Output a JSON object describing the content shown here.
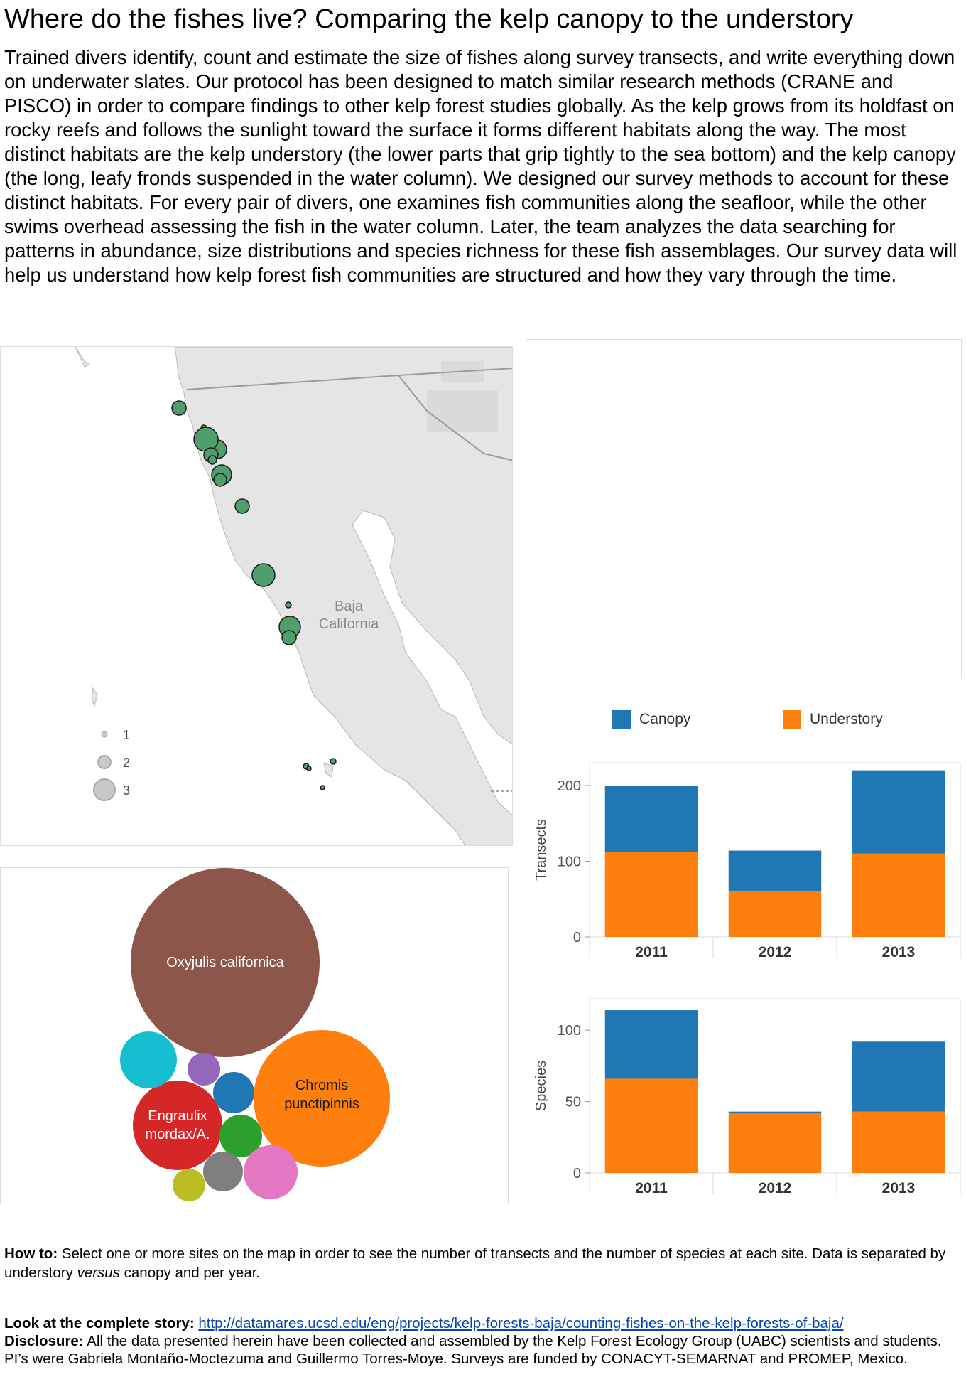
{
  "page": {
    "title": "Where do the fishes live? Comparing the kelp canopy to the understory",
    "intro": "Trained divers identify, count and estimate the size of fishes along survey transects, and write everything down on underwater slates. Our protocol has been designed to match similar research methods (CRANE and PISCO) in order to compare findings to other kelp forest studies globally. As the kelp grows from its holdfast on rocky reefs and follows the sunlight toward the surface it forms different habitats along the way. The most distinct habitats are the kelp understory (the lower parts that grip tightly to the sea bottom) and the kelp canopy (the long, leafy fronds suspended in the water column). We designed our survey methods to account for these distinct habitats. For every pair of divers, one examines fish communities along the seafloor, while the other swims overhead assessing the fish in the water column. Later, the team analyzes the data searching for patterns in abundance, size distributions and species richness for these fish assemblages. Our survey data will help us understand how kelp forest fish communities are structured and how they vary through the time."
  },
  "map": {
    "region_label": "Baja California",
    "region_label_line1": "Baja",
    "region_label_line2": "California",
    "size_legend": [
      "1",
      "2",
      "3"
    ],
    "colors": {
      "water": "#ffffff",
      "land": "#e5e5e5",
      "site_fill": "#4f9e6b",
      "site_stroke": "#1a1a1a"
    }
  },
  "legend": {
    "canopy": {
      "label": "Canopy",
      "color": "#1f77b4"
    },
    "understory": {
      "label": "Understory",
      "color": "#ff7f0e"
    }
  },
  "bubbles": {
    "labels": {
      "oxyjulis": "Oxyjulis californica",
      "chromis_1": "Chromis",
      "chromis_2": "punctipinnis",
      "engraulix_1": "Engraulix",
      "engraulix_2": "mordax/A."
    },
    "colors": {
      "oxyjulis": "#8c564b",
      "chromis": "#ff7f0e",
      "engraulix": "#d62728",
      "cyan": "#17becf",
      "purple": "#9467bd",
      "blue": "#1f77b4",
      "green": "#2ca02c",
      "gray": "#7f7f7f",
      "pink": "#e377c2",
      "olive": "#bcbd22"
    }
  },
  "chart_data": [
    {
      "type": "bar",
      "stacked": true,
      "categories": [
        "2011",
        "2012",
        "2013"
      ],
      "series": [
        {
          "name": "Understory",
          "values": [
            112,
            61,
            110
          ]
        },
        {
          "name": "Canopy",
          "values": [
            88,
            53,
            110
          ]
        }
      ],
      "ylabel": "Transects",
      "yticks": [
        "0",
        "100",
        "200"
      ],
      "ylim": [
        0,
        230
      ],
      "legend": "top"
    },
    {
      "type": "bar",
      "stacked": true,
      "categories": [
        "2011",
        "2012",
        "2013"
      ],
      "series": [
        {
          "name": "Understory",
          "values": [
            66,
            42,
            43
          ]
        },
        {
          "name": "Canopy",
          "values": [
            48,
            1,
            49
          ]
        }
      ],
      "ylabel": "Species",
      "yticks": [
        "0",
        "50",
        "100"
      ],
      "ylim": [
        0,
        122
      ],
      "legend": "top"
    }
  ],
  "footer": {
    "howto_label": "How to:",
    "howto_text_1": " Select one or more sites on the map in order to see the number of transects and the number of species at each site. Data is separated by understory ",
    "howto_italic": "versus",
    "howto_text_2": " canopy and per year.",
    "story_label": "Look at the complete story:",
    "story_link": "http://datamares.ucsd.edu/eng/projects/kelp-forests-baja/counting-fishes-on-the-kelp-forests-of-baja/",
    "disclosure_label": "Disclosure:",
    "disclosure_text": " All the data presented herein have been collected and assembled by the Kelp Forest Ecology Group (UABC) scientists and students. PI’s were Gabriela Montaño-Moctezuma and Guillermo Torres-Moye. Surveys are funded by CONACYT-SEMARNAT and PROMEP, Mexico."
  }
}
